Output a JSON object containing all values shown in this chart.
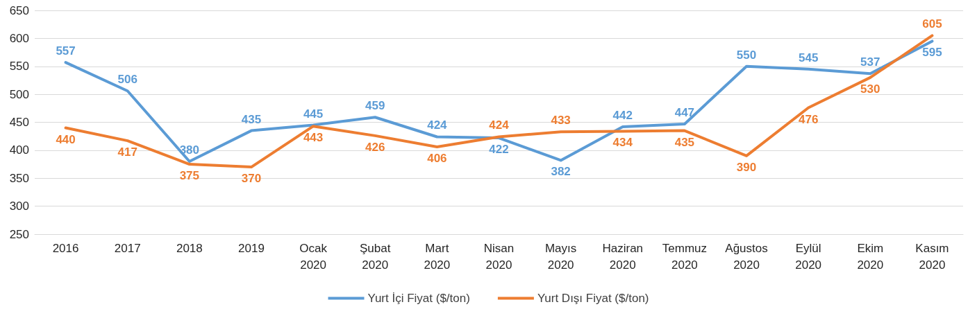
{
  "chart_data": {
    "type": "line",
    "categories": [
      "2016",
      "2017",
      "2018",
      "2019",
      "Ocak 2020",
      "Şubat 2020",
      "Mart 2020",
      "Nisan 2020",
      "Mayıs 2020",
      "Haziran 2020",
      "Temmuz 2020",
      "Ağustos 2020",
      "Eylül 2020",
      "Ekim 2020",
      "Kasım 2020"
    ],
    "series": [
      {
        "name": "Yurt İçi Fiyat ($/ton)",
        "color": "#5b9bd5",
        "values": [
          557,
          506,
          380,
          435,
          445,
          459,
          424,
          422,
          382,
          442,
          447,
          550,
          545,
          537,
          595
        ]
      },
      {
        "name": "Yurt Dışı Fiyat ($/ton)",
        "color": "#ed7d31",
        "values": [
          440,
          417,
          375,
          370,
          443,
          426,
          406,
          424,
          433,
          434,
          435,
          390,
          476,
          530,
          605
        ]
      }
    ],
    "ylim": [
      250,
      650
    ],
    "yticks": [
      250,
      300,
      350,
      400,
      450,
      500,
      550,
      600,
      650
    ],
    "grid": "y",
    "legend": "bottom",
    "marker": "none",
    "line_style": "solid",
    "data_labels": true
  }
}
